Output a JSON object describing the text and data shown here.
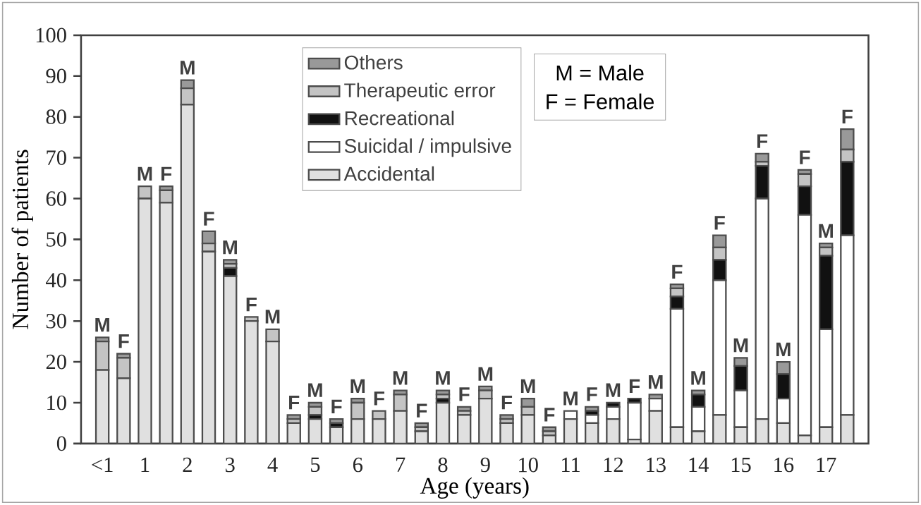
{
  "chart_data": {
    "type": "bar",
    "stacked": true,
    "xlabel": "Age (years)",
    "ylabel": "Number of patients",
    "categories": [
      "<1",
      null,
      "1",
      null,
      "2",
      null,
      "3",
      null,
      "4",
      null,
      "5",
      null,
      "6",
      null,
      "7",
      null,
      "8",
      null,
      "9",
      null,
      "10",
      null,
      "11",
      null,
      "12",
      null,
      "13",
      null,
      "14",
      null,
      "15",
      null,
      "16",
      null,
      "17",
      null
    ],
    "ylim": [
      0,
      100
    ],
    "yticks": [
      0,
      10,
      20,
      30,
      40,
      50,
      60,
      70,
      80,
      90,
      100
    ],
    "legend": "top",
    "annotations": [
      "M = Male",
      "F = Female"
    ],
    "series": [
      {
        "name": "Accidental",
        "color": "#e0e0e0",
        "values": [
          18,
          16,
          60,
          59,
          83,
          47,
          41,
          30,
          25,
          5,
          6,
          4,
          6,
          6,
          8,
          3,
          10,
          7,
          11,
          5,
          7,
          2,
          6,
          5,
          6,
          1,
          8,
          4,
          3,
          7,
          4,
          6,
          5,
          2,
          4,
          7
        ]
      },
      {
        "name": "Suicidal / impulsive",
        "color": "#ffffff",
        "values": [
          0,
          0,
          0,
          0,
          0,
          0,
          0,
          0,
          0,
          0,
          0,
          0,
          0,
          0,
          0,
          0,
          0,
          0,
          0,
          0,
          0,
          0,
          2,
          2,
          3,
          9,
          3,
          29,
          6,
          33,
          9,
          54,
          6,
          54,
          24,
          44
        ]
      },
      {
        "name": "Recreational",
        "color": "#111111",
        "values": [
          0,
          0,
          0,
          0,
          0,
          0,
          2,
          0,
          0,
          0,
          1,
          1,
          0,
          0,
          0,
          0,
          1,
          0,
          0,
          0,
          0,
          0,
          0,
          1,
          1,
          1,
          0,
          3,
          3,
          5,
          6,
          8,
          6,
          7,
          18,
          18
        ]
      },
      {
        "name": "Therapeutic error",
        "color": "#c4c4c4",
        "values": [
          7,
          5,
          3,
          3,
          4,
          2,
          1,
          1,
          3,
          1,
          2,
          0,
          4,
          2,
          4,
          1,
          1,
          1,
          2,
          1,
          2,
          1,
          0,
          0,
          0,
          0,
          0,
          2,
          0,
          3,
          0,
          1,
          0,
          3,
          2,
          3
        ]
      },
      {
        "name": "Others",
        "color": "#999999",
        "values": [
          1,
          1,
          0,
          1,
          2,
          3,
          1,
          0,
          0,
          1,
          1,
          1,
          1,
          0,
          1,
          1,
          1,
          1,
          1,
          1,
          2,
          1,
          0,
          1,
          0,
          0,
          1,
          1,
          1,
          3,
          2,
          2,
          3,
          1,
          1,
          5
        ],
        "value_labels": [
          "M",
          "F",
          "M",
          "F",
          "M",
          "F",
          "M",
          "F",
          "M",
          "F",
          "M",
          "F",
          "M",
          "F",
          "M",
          "F",
          "M",
          "F",
          "M",
          "F",
          "M",
          "F",
          "M",
          "F",
          "M",
          "F",
          "M",
          "F",
          "M",
          "F",
          "M",
          "F",
          "M",
          "F",
          "M",
          "F"
        ]
      }
    ]
  }
}
